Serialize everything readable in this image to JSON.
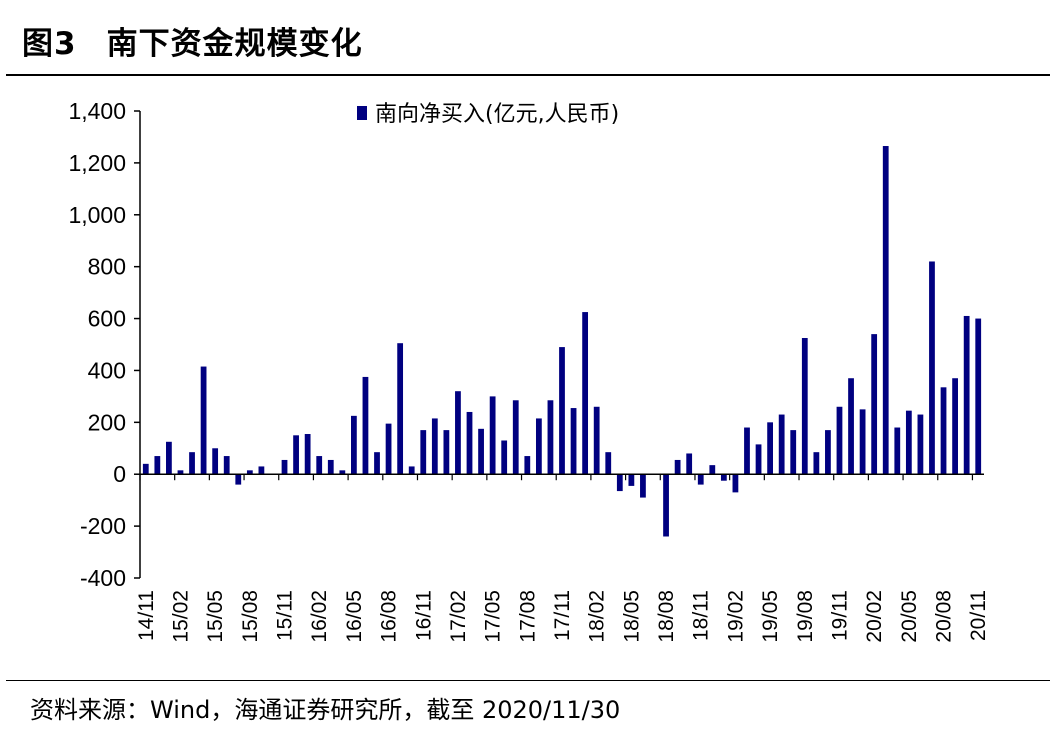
{
  "header": {
    "figure_number": "图3",
    "title": "南下资金规模变化"
  },
  "source": "资料来源：Wind，海通证券研究所，截至 2020/11/30",
  "colors": {
    "bar": "#000080",
    "axis": "#000000",
    "background": "#ffffff"
  },
  "chart_data": {
    "type": "bar",
    "title": "",
    "xlabel": "",
    "ylabel": "",
    "ylim": [
      -400,
      1400
    ],
    "yticks": [
      -400,
      -200,
      0,
      200,
      400,
      600,
      800,
      1000,
      1200,
      1400
    ],
    "ytick_labels": [
      "-400",
      "-200",
      "0",
      "200",
      "400",
      "600",
      "800",
      "1,000",
      "1,200",
      "1,400"
    ],
    "grid": false,
    "legend": {
      "position": "top",
      "entries": [
        "南向净买入(亿元,人民币)"
      ]
    },
    "categories": [
      "14/11",
      "14/12",
      "15/01",
      "15/02",
      "15/03",
      "15/04",
      "15/05",
      "15/06",
      "15/07",
      "15/08",
      "15/09",
      "15/10",
      "15/11",
      "15/12",
      "16/01",
      "16/02",
      "16/03",
      "16/04",
      "16/05",
      "16/06",
      "16/07",
      "16/08",
      "16/09",
      "16/10",
      "16/11",
      "16/12",
      "17/01",
      "17/02",
      "17/03",
      "17/04",
      "17/05",
      "17/06",
      "17/07",
      "17/08",
      "17/09",
      "17/10",
      "17/11",
      "17/12",
      "18/01",
      "18/02",
      "18/03",
      "18/04",
      "18/05",
      "18/06",
      "18/07",
      "18/08",
      "18/09",
      "18/10",
      "18/11",
      "18/12",
      "19/01",
      "19/02",
      "19/03",
      "19/04",
      "19/05",
      "19/06",
      "19/07",
      "19/08",
      "19/09",
      "19/10",
      "19/11",
      "19/12",
      "20/01",
      "20/02",
      "20/03",
      "20/04",
      "20/05",
      "20/06",
      "20/07",
      "20/08",
      "20/09",
      "20/10",
      "20/11"
    ],
    "shown_tick_labels": [
      "14/11",
      "15/02",
      "15/05",
      "15/08",
      "15/11",
      "16/02",
      "16/05",
      "16/08",
      "16/11",
      "17/02",
      "17/05",
      "17/08",
      "17/11",
      "18/02",
      "18/05",
      "18/08",
      "18/11",
      "19/02",
      "19/05",
      "19/08",
      "19/11",
      "20/02",
      "20/05",
      "20/08",
      "20/11"
    ],
    "series": [
      {
        "name": "南向净买入(亿元,人民币)",
        "values": [
          40,
          70,
          125,
          15,
          85,
          415,
          100,
          70,
          -40,
          15,
          30,
          0,
          55,
          150,
          155,
          70,
          55,
          15,
          225,
          375,
          85,
          195,
          505,
          30,
          170,
          215,
          170,
          320,
          240,
          175,
          300,
          130,
          285,
          70,
          215,
          285,
          490,
          255,
          625,
          260,
          85,
          -65,
          -45,
          -90,
          0,
          -240,
          55,
          80,
          -40,
          35,
          -25,
          -70,
          180,
          115,
          200,
          230,
          170,
          525,
          85,
          170,
          260,
          370,
          250,
          540,
          1265,
          180,
          245,
          230,
          820,
          335,
          370,
          610,
          600
        ]
      }
    ]
  }
}
